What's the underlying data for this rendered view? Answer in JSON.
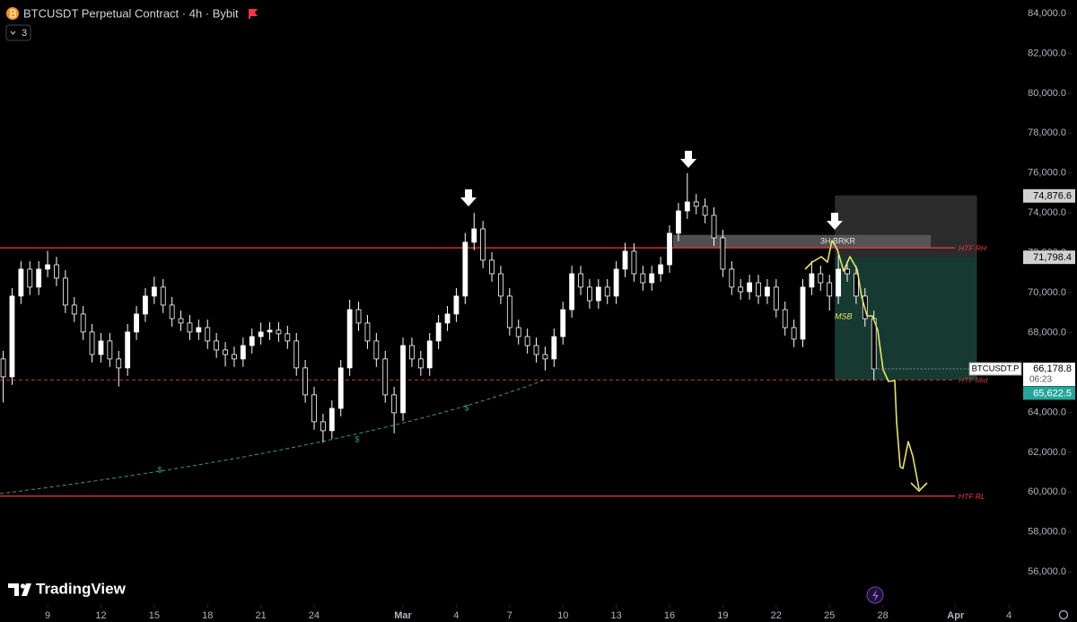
{
  "chart_data": {
    "type": "candlestick",
    "title": "BTCUSDT Perpetual Contract · 4h · Bybit",
    "indicator_badge": "3",
    "branding": "TradingView",
    "xlim": [
      -2.68,
      57.93
    ],
    "ylim": [
      54435,
      84675
    ],
    "xticks": [
      {
        "value": 0,
        "label": "9"
      },
      {
        "value": 3,
        "label": "12"
      },
      {
        "value": 6,
        "label": "15"
      },
      {
        "value": 9,
        "label": "18"
      },
      {
        "value": 12,
        "label": "21"
      },
      {
        "value": 15,
        "label": "24"
      },
      {
        "value": 20,
        "label": "Mar"
      },
      {
        "value": 23,
        "label": "4"
      },
      {
        "value": 26,
        "label": "7"
      },
      {
        "value": 29,
        "label": "10"
      },
      {
        "value": 32,
        "label": "13"
      },
      {
        "value": 35,
        "label": "16"
      },
      {
        "value": 38,
        "label": "19"
      },
      {
        "value": 41,
        "label": "22"
      },
      {
        "value": 44,
        "label": "25"
      },
      {
        "value": 47,
        "label": "28"
      },
      {
        "value": 51.1,
        "label": "Apr"
      },
      {
        "value": 54.1,
        "label": "4"
      }
    ],
    "yticks": [
      {
        "value": 56000,
        "label": "56,000.0"
      },
      {
        "value": 58000,
        "label": "58,000.0"
      },
      {
        "value": 60000,
        "label": "60,000.0"
      },
      {
        "value": 62000,
        "label": "62,000.0"
      },
      {
        "value": 64000,
        "label": "64,000.0"
      },
      {
        "value": 66000,
        "label": "66,000.0"
      },
      {
        "value": 68000,
        "label": "68,000.0"
      },
      {
        "value": 70000,
        "label": "70,000.0"
      },
      {
        "value": 72000,
        "label": "72,000.0"
      },
      {
        "value": 74000,
        "label": "74,000.0"
      },
      {
        "value": 76000,
        "label": "76,000.0"
      },
      {
        "value": 78000,
        "label": "78,000.0"
      },
      {
        "value": 80000,
        "label": "80,000.0"
      },
      {
        "value": 82000,
        "label": "82,000.0"
      },
      {
        "value": 84000,
        "label": "84,000.0"
      }
    ],
    "up_color": "#ffffff",
    "down_color": "#000000",
    "x": [
      -2.5,
      -2,
      -1.5,
      -1,
      -0.5,
      0,
      0.5,
      1,
      1.5,
      2,
      2.5,
      3,
      3.5,
      4,
      4.5,
      5,
      5.5,
      6,
      6.5,
      7,
      7.5,
      8,
      8.5,
      9,
      9.5,
      10,
      10.5,
      11,
      11.5,
      12,
      12.5,
      13,
      13.5,
      14,
      14.5,
      15,
      15.5,
      16,
      16.5,
      17,
      17.5,
      18,
      18.5,
      19,
      19.5,
      20,
      20.5,
      21,
      21.5,
      22,
      22.5,
      23,
      23.5,
      24,
      24.5,
      25,
      25.5,
      26,
      26.5,
      27,
      27.5,
      28,
      28.5,
      29,
      29.5,
      30,
      30.5,
      31,
      31.5,
      32,
      32.5,
      33,
      33.5,
      34,
      34.5,
      35,
      35.5,
      36,
      36.5,
      37,
      37.5,
      38,
      38.5,
      39,
      39.5,
      40,
      40.5,
      41,
      41.5,
      42,
      42.5,
      43,
      43.5,
      44,
      44.5,
      45,
      45.5,
      46,
      46.5
    ],
    "open": [
      66680,
      65780,
      69830,
      71180,
      70280,
      71180,
      71400,
      70730,
      69380,
      68930,
      68030,
      66900,
      67580,
      66680,
      66230,
      68030,
      68930,
      69830,
      70280,
      69380,
      68700,
      68480,
      68030,
      68250,
      67580,
      67130,
      66900,
      66680,
      67350,
      67800,
      68030,
      68120,
      67940,
      67580,
      66230,
      64880,
      63530,
      63080,
      64200,
      66230,
      69150,
      68480,
      67580,
      66680,
      64880,
      63980,
      67350,
      66680,
      66230,
      67580,
      68480,
      68930,
      69830,
      72530,
      73200,
      71630,
      70950,
      69830,
      68250,
      67800,
      67350,
      66900,
      66680,
      67800,
      69150,
      70950,
      70280,
      69600,
      70280,
      69830,
      71180,
      72080,
      70950,
      70500,
      70950,
      71400,
      72980,
      74100,
      74550,
      74330,
      73880,
      72750,
      71180,
      70280,
      70050,
      70500,
      69830,
      70280,
      69150,
      68250,
      67670,
      70280,
      70950,
      70500,
      69830,
      71180,
      70950,
      69830,
      68700
    ],
    "high": [
      67080,
      70230,
      71580,
      71580,
      71580,
      72100,
      71800,
      71130,
      69780,
      69330,
      68430,
      67980,
      67980,
      67080,
      68430,
      69330,
      70230,
      70800,
      70680,
      69780,
      69100,
      68880,
      68650,
      68650,
      67980,
      67530,
      67300,
      67750,
      68200,
      68500,
      68520,
      68520,
      68340,
      67980,
      66630,
      65280,
      63930,
      64600,
      66630,
      69650,
      69550,
      68880,
      67980,
      67080,
      65280,
      67750,
      67750,
      67080,
      67980,
      68880,
      69330,
      70230,
      73000,
      74000,
      73600,
      72030,
      71350,
      70230,
      68650,
      68200,
      67750,
      67300,
      68200,
      69550,
      71350,
      71350,
      70680,
      70680,
      70680,
      71580,
      72500,
      72480,
      71350,
      71350,
      71800,
      73380,
      74500,
      76000,
      74950,
      74730,
      74280,
      73150,
      71580,
      70680,
      70900,
      70900,
      70680,
      70680,
      69550,
      68650,
      70680,
      71600,
      71350,
      70900,
      71900,
      71580,
      71350,
      70230,
      69100
    ],
    "low": [
      64500,
      65380,
      69430,
      69880,
      69880,
      70780,
      70330,
      68980,
      68530,
      67630,
      66500,
      66500,
      66280,
      65300,
      65830,
      67630,
      68530,
      69430,
      68980,
      68300,
      68080,
      67630,
      67630,
      67180,
      66730,
      66300,
      66280,
      66280,
      66950,
      67400,
      67630,
      67540,
      67180,
      65830,
      64480,
      63130,
      62480,
      62680,
      63800,
      65830,
      68080,
      67180,
      66280,
      64480,
      62950,
      63580,
      66280,
      65830,
      65830,
      67180,
      68080,
      68530,
      69430,
      72130,
      71230,
      70550,
      69430,
      67850,
      67400,
      66950,
      66500,
      66100,
      66280,
      67400,
      68750,
      69880,
      69200,
      69200,
      69430,
      69430,
      70780,
      70550,
      70100,
      70100,
      70550,
      71000,
      72580,
      73700,
      73930,
      73480,
      72350,
      70780,
      69880,
      69650,
      69650,
      69430,
      69430,
      68750,
      67850,
      67270,
      67270,
      69880,
      70100,
      69100,
      69430,
      70550,
      69430,
      68300,
      65600
    ],
    "close": [
      65780,
      69830,
      71180,
      70280,
      71180,
      71400,
      70730,
      69380,
      68930,
      68030,
      66900,
      67580,
      66680,
      66230,
      68030,
      68930,
      69830,
      70280,
      69380,
      68700,
      68480,
      68030,
      68250,
      67580,
      67130,
      66900,
      66680,
      67350,
      67800,
      68030,
      68120,
      67940,
      67580,
      66230,
      64880,
      63530,
      63080,
      64200,
      66230,
      69150,
      68480,
      67580,
      66680,
      64880,
      63980,
      67350,
      66680,
      66230,
      67580,
      68480,
      68930,
      69830,
      72530,
      73200,
      71630,
      70950,
      69830,
      68250,
      67800,
      67350,
      66900,
      66680,
      67800,
      69150,
      70950,
      70280,
      69600,
      70280,
      69830,
      71180,
      72080,
      70950,
      70500,
      70950,
      71400,
      72980,
      74100,
      74550,
      74330,
      73880,
      72750,
      71180,
      70280,
      70050,
      70500,
      69830,
      70280,
      69150,
      68250,
      67670,
      70280,
      70950,
      70500,
      69830,
      71180,
      70950,
      69830,
      68700,
      66178.8
    ],
    "levels": [
      {
        "name": "HTF RH",
        "value": 72250,
        "color": "#f23645",
        "dashed": false
      },
      {
        "name": "HTF Mid",
        "value": 65622.5,
        "color": "#c0392b",
        "dashed": true
      },
      {
        "name": "HTF RL",
        "value": 59800,
        "color": "#f23645",
        "dashed": false
      }
    ],
    "zones": [
      {
        "x": [
          44.3,
          52.3
        ],
        "top": 74876.6,
        "bottom": 71798.4,
        "color": "#2b2b2b"
      },
      {
        "x": [
          44.3,
          52.3
        ],
        "top": 71798.4,
        "bottom": 65622.5,
        "color": "#163a31"
      }
    ],
    "breaker": {
      "label": "3H BRKR",
      "x": [
        35.2,
        49.7
      ],
      "top": 72900,
      "bottom": 72250,
      "color": "#5d5d5d"
    },
    "msb": {
      "label": "MSB",
      "x": 44.8,
      "y": 68790
    },
    "dollar_marker": "$",
    "price_tags": [
      {
        "value": 74876.6,
        "label": "74,876.6",
        "color": "#d1d1d1"
      },
      {
        "value": 71798.4,
        "label": "71,798.4",
        "color": "#d1d1d1"
      },
      {
        "value": 65622.5,
        "label": "65,622.5",
        "color": "#26a69a"
      }
    ],
    "last_price": {
      "symbol": "BTCUSDT.P",
      "value": 66178.8,
      "label": "66,178.8",
      "countdown": "06:23"
    }
  }
}
